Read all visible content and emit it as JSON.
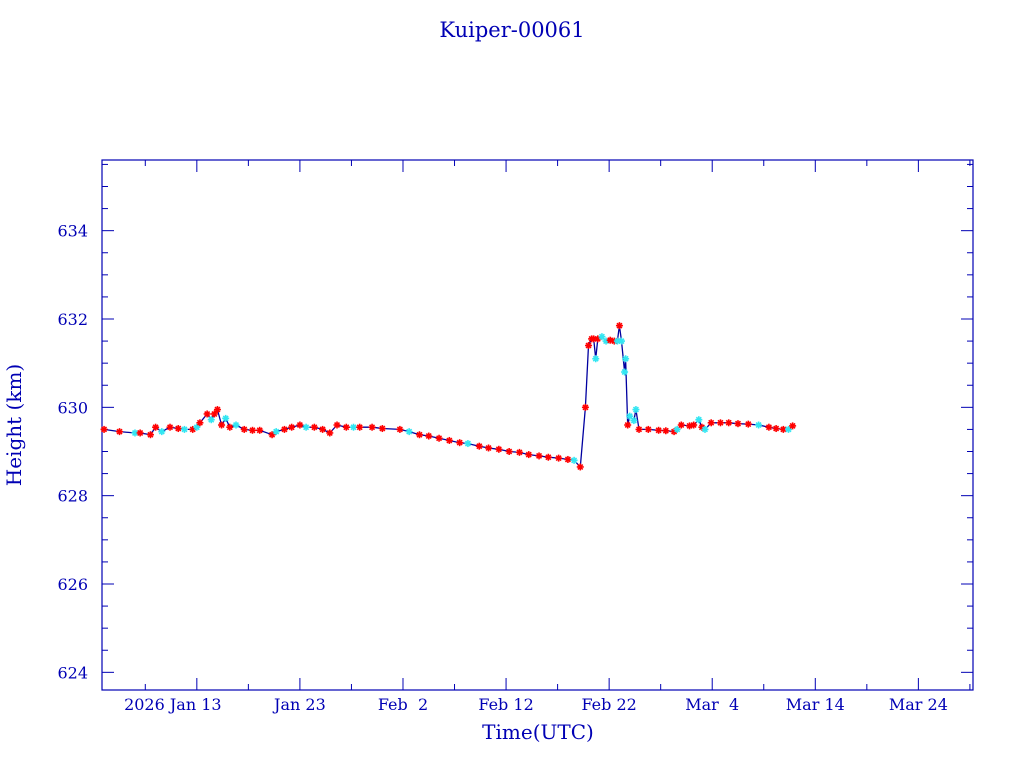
{
  "chart_data": {
    "type": "line",
    "title": "Kuiper-00061",
    "xlabel": "Time(UTC)",
    "ylabel": "Height (km)",
    "x_units": "day of year 2026",
    "xlim": [
      3.8,
      88.3
    ],
    "ylim": [
      623.6,
      635.6
    ],
    "x_ticks": [
      {
        "value": 13,
        "label": "2026 Jan 13"
      },
      {
        "value": 23,
        "label": "Jan 23"
      },
      {
        "value": 33,
        "label": "Feb  2"
      },
      {
        "value": 43,
        "label": "Feb 12"
      },
      {
        "value": 53,
        "label": "Feb 22"
      },
      {
        "value": 63,
        "label": "Mar  4"
      },
      {
        "value": 73,
        "label": "Mar 14"
      },
      {
        "value": 83,
        "label": "Mar 24"
      }
    ],
    "y_ticks": [
      624,
      626,
      628,
      630,
      632,
      634
    ],
    "grid": false,
    "colors": {
      "axis": "#0000b4",
      "line": "#0000a0",
      "marker_a": "#ff0000",
      "marker_b": "#33e6f2"
    },
    "series": [
      {
        "name": "height",
        "points": [
          [
            4.0,
            629.5,
            "a"
          ],
          [
            5.5,
            629.45,
            "a"
          ],
          [
            7.0,
            629.42,
            "b"
          ],
          [
            7.5,
            629.42,
            "a"
          ],
          [
            8.5,
            629.38,
            "a"
          ],
          [
            9.0,
            629.55,
            "a"
          ],
          [
            9.6,
            629.45,
            "b"
          ],
          [
            10.4,
            629.55,
            "a"
          ],
          [
            11.2,
            629.52,
            "a"
          ],
          [
            11.8,
            629.5,
            "b"
          ],
          [
            12.6,
            629.5,
            "a"
          ],
          [
            13.0,
            629.55,
            "b"
          ],
          [
            13.3,
            629.65,
            "a"
          ],
          [
            14.0,
            629.85,
            "a"
          ],
          [
            14.4,
            629.72,
            "b"
          ],
          [
            14.7,
            629.85,
            "a"
          ],
          [
            15.0,
            629.95,
            "a"
          ],
          [
            15.4,
            629.6,
            "a"
          ],
          [
            15.8,
            629.75,
            "b"
          ],
          [
            16.2,
            629.55,
            "a"
          ],
          [
            16.8,
            629.6,
            "b"
          ],
          [
            17.6,
            629.5,
            "a"
          ],
          [
            18.4,
            629.48,
            "a"
          ],
          [
            19.1,
            629.48,
            "a"
          ],
          [
            20.3,
            629.38,
            "a"
          ],
          [
            20.7,
            629.45,
            "b"
          ],
          [
            21.5,
            629.5,
            "a"
          ],
          [
            22.2,
            629.55,
            "a"
          ],
          [
            23.0,
            629.6,
            "a"
          ],
          [
            23.6,
            629.55,
            "b"
          ],
          [
            24.4,
            629.55,
            "a"
          ],
          [
            25.2,
            629.5,
            "a"
          ],
          [
            25.9,
            629.42,
            "a"
          ],
          [
            26.6,
            629.6,
            "a"
          ],
          [
            27.5,
            629.55,
            "a"
          ],
          [
            28.2,
            629.55,
            "b"
          ],
          [
            28.8,
            629.55,
            "a"
          ],
          [
            30.0,
            629.55,
            "a"
          ],
          [
            31.0,
            629.52,
            "a"
          ],
          [
            32.7,
            629.5,
            "a"
          ],
          [
            33.6,
            629.45,
            "b"
          ],
          [
            34.6,
            629.38,
            "a"
          ],
          [
            35.5,
            629.35,
            "a"
          ],
          [
            36.5,
            629.3,
            "a"
          ],
          [
            37.5,
            629.25,
            "a"
          ],
          [
            38.5,
            629.2,
            "a"
          ],
          [
            39.3,
            629.18,
            "b"
          ],
          [
            40.4,
            629.12,
            "a"
          ],
          [
            41.3,
            629.08,
            "a"
          ],
          [
            42.3,
            629.05,
            "a"
          ],
          [
            43.3,
            629.0,
            "a"
          ],
          [
            44.3,
            628.98,
            "a"
          ],
          [
            45.2,
            628.93,
            "a"
          ],
          [
            46.2,
            628.9,
            "a"
          ],
          [
            47.1,
            628.87,
            "a"
          ],
          [
            48.1,
            628.85,
            "a"
          ],
          [
            49.0,
            628.82,
            "a"
          ],
          [
            49.6,
            628.8,
            "b"
          ],
          [
            50.2,
            628.65,
            "a"
          ],
          [
            50.7,
            630.0,
            "a"
          ],
          [
            51.0,
            631.4,
            "a"
          ],
          [
            51.3,
            631.55,
            "a"
          ],
          [
            51.5,
            631.55,
            "a"
          ],
          [
            51.7,
            631.1,
            "b"
          ],
          [
            51.9,
            631.55,
            "a"
          ],
          [
            52.3,
            631.6,
            "b"
          ],
          [
            52.7,
            631.5,
            "b"
          ],
          [
            53.1,
            631.52,
            "a"
          ],
          [
            53.5,
            631.5,
            "a"
          ],
          [
            53.8,
            631.5,
            "b"
          ],
          [
            54.0,
            631.85,
            "a"
          ],
          [
            54.2,
            631.5,
            "b"
          ],
          [
            54.5,
            630.8,
            "b"
          ],
          [
            54.6,
            631.1,
            "b"
          ],
          [
            54.8,
            629.6,
            "a"
          ],
          [
            55.0,
            629.8,
            "b"
          ],
          [
            55.4,
            629.7,
            "b"
          ],
          [
            55.6,
            629.95,
            "b"
          ],
          [
            55.9,
            629.5,
            "a"
          ],
          [
            56.8,
            629.5,
            "a"
          ],
          [
            57.8,
            629.48,
            "a"
          ],
          [
            58.5,
            629.47,
            "a"
          ],
          [
            59.3,
            629.45,
            "a"
          ],
          [
            59.6,
            629.5,
            "b"
          ],
          [
            60.0,
            629.6,
            "a"
          ],
          [
            60.8,
            629.58,
            "a"
          ],
          [
            61.2,
            629.6,
            "a"
          ],
          [
            61.7,
            629.72,
            "b"
          ],
          [
            62.0,
            629.55,
            "a"
          ],
          [
            62.3,
            629.5,
            "b"
          ],
          [
            62.9,
            629.65,
            "a"
          ],
          [
            63.8,
            629.65,
            "a"
          ],
          [
            64.6,
            629.65,
            "a"
          ],
          [
            65.5,
            629.63,
            "a"
          ],
          [
            66.5,
            629.62,
            "a"
          ],
          [
            67.5,
            629.6,
            "b"
          ],
          [
            68.5,
            629.55,
            "a"
          ],
          [
            69.2,
            629.52,
            "a"
          ],
          [
            69.9,
            629.5,
            "a"
          ],
          [
            70.4,
            629.5,
            "b"
          ],
          [
            70.8,
            629.58,
            "a"
          ]
        ]
      }
    ]
  }
}
